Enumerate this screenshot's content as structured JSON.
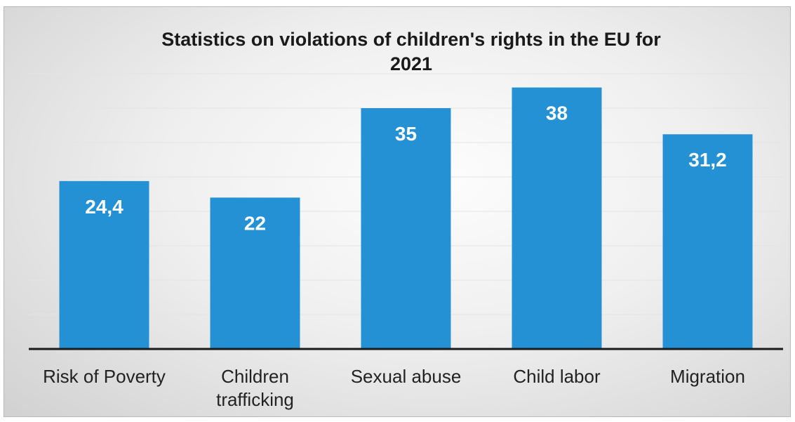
{
  "chart_data": {
    "type": "bar",
    "title": "Statistics on violations of children's rights in the EU for 2021",
    "title_lines": [
      "Statistics on violations of children's rights in the EU for",
      "2021"
    ],
    "categories": [
      "Risk of Poverty",
      "Children trafficking",
      "Sexual abuse",
      "Child labor",
      "Migration"
    ],
    "category_label_lines": [
      [
        "Risk of Poverty"
      ],
      [
        "Children",
        "trafficking"
      ],
      [
        "Sexual abuse"
      ],
      [
        "Child labor"
      ],
      [
        "Migration"
      ]
    ],
    "values": [
      24.4,
      22,
      35,
      38,
      31.2
    ],
    "value_labels": [
      "24,4",
      "22",
      "35",
      "38",
      "31,2"
    ],
    "xlabel": "",
    "ylabel": "",
    "ylim": [
      0,
      40
    ],
    "grid": true,
    "legend": "none",
    "bar_color": "#2591d5",
    "label_color": "#ffffff"
  }
}
